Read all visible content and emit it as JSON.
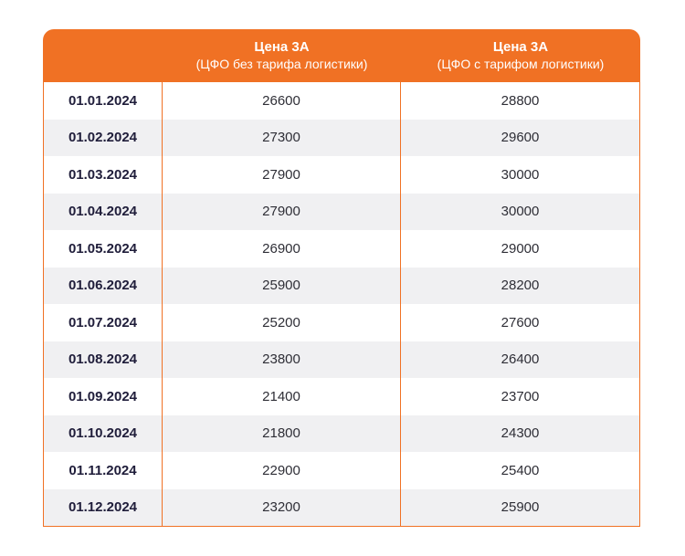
{
  "colors": {
    "accent": "#f07124",
    "row_alt": "#f0f0f2",
    "date_text": "#1f1d3a",
    "value_text": "#2e2e36"
  },
  "table": {
    "headers": [
      {
        "title": "",
        "subtitle": ""
      },
      {
        "title": "Цена 3А",
        "subtitle": "(ЦФО без тарифа логистики)"
      },
      {
        "title": "Цена 3А",
        "subtitle": "(ЦФО с тарифом логистики)"
      }
    ],
    "rows": [
      {
        "date": "01.01.2024",
        "without_logistics": "26600",
        "with_logistics": "28800"
      },
      {
        "date": "01.02.2024",
        "without_logistics": "27300",
        "with_logistics": "29600"
      },
      {
        "date": "01.03.2024",
        "without_logistics": "27900",
        "with_logistics": "30000"
      },
      {
        "date": "01.04.2024",
        "without_logistics": "27900",
        "with_logistics": "30000"
      },
      {
        "date": "01.05.2024",
        "without_logistics": "26900",
        "with_logistics": "29000"
      },
      {
        "date": "01.06.2024",
        "without_logistics": "25900",
        "with_logistics": "28200"
      },
      {
        "date": "01.07.2024",
        "without_logistics": "25200",
        "with_logistics": "27600"
      },
      {
        "date": "01.08.2024",
        "without_logistics": "23800",
        "with_logistics": "26400"
      },
      {
        "date": "01.09.2024",
        "without_logistics": "21400",
        "with_logistics": "23700"
      },
      {
        "date": "01.10.2024",
        "without_logistics": "21800",
        "with_logistics": "24300"
      },
      {
        "date": "01.11.2024",
        "without_logistics": "22900",
        "with_logistics": "25400"
      },
      {
        "date": "01.12.2024",
        "without_logistics": "23200",
        "with_logistics": "25900"
      }
    ]
  }
}
